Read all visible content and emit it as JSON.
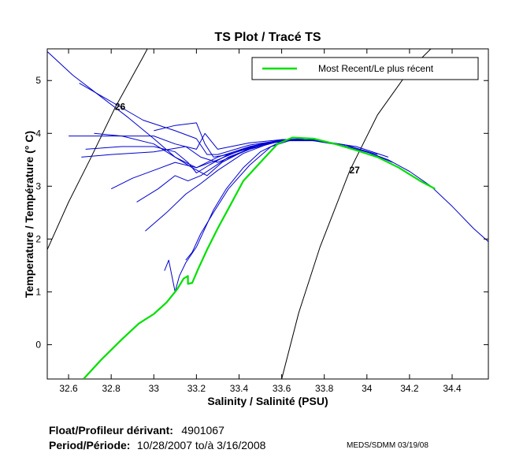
{
  "chart_data": {
    "type": "line",
    "title": "TS Plot / Tracé TS",
    "xlabel": "Salinity / Salinité (PSU)",
    "ylabel": "Temperature / Température (° C)",
    "xlim": [
      32.5,
      34.57
    ],
    "ylim": [
      -0.65,
      5.6
    ],
    "xticks": [
      32.6,
      32.8,
      33,
      33.2,
      33.4,
      33.6,
      33.8,
      34,
      34.2,
      34.4
    ],
    "xtick_labels": [
      "32.6",
      "32.8",
      "33",
      "33.2",
      "33.4",
      "33.6",
      "33.8",
      "34",
      "34.2",
      "34.4"
    ],
    "yticks": [
      0,
      1,
      2,
      3,
      4,
      5
    ],
    "ytick_labels": [
      "0",
      "1",
      "2",
      "3",
      "4",
      "5"
    ],
    "legend": {
      "position": "top-right",
      "entries": [
        {
          "label": "Most Recent/Le plus récent",
          "color": "#00e000"
        }
      ]
    },
    "density_contours": [
      {
        "label": "26",
        "label_at": [
          32.82,
          4.5
        ],
        "points": [
          [
            32.5,
            1.8
          ],
          [
            32.6,
            2.7
          ],
          [
            32.7,
            3.5
          ],
          [
            32.82,
            4.5
          ],
          [
            32.95,
            5.45
          ],
          [
            32.97,
            5.6
          ]
        ]
      },
      {
        "label": "27",
        "label_at": [
          33.92,
          3.3
        ],
        "points": [
          [
            33.6,
            -0.65
          ],
          [
            33.68,
            0.6
          ],
          [
            33.78,
            1.85
          ],
          [
            33.92,
            3.3
          ],
          [
            34.05,
            4.35
          ],
          [
            34.2,
            5.2
          ],
          [
            34.3,
            5.6
          ]
        ]
      }
    ],
    "series": [
      {
        "name": "Most Recent/Le plus récent",
        "color": "#00e000",
        "width": 2.2,
        "points": [
          [
            32.67,
            -0.65
          ],
          [
            32.75,
            -0.3
          ],
          [
            32.85,
            0.1
          ],
          [
            32.93,
            0.4
          ],
          [
            33.0,
            0.58
          ],
          [
            33.06,
            0.8
          ],
          [
            33.11,
            1.05
          ],
          [
            33.14,
            1.25
          ],
          [
            33.16,
            1.3
          ],
          [
            33.16,
            1.15
          ],
          [
            33.18,
            1.17
          ],
          [
            33.21,
            1.45
          ],
          [
            33.25,
            1.8
          ],
          [
            33.3,
            2.2
          ],
          [
            33.36,
            2.65
          ],
          [
            33.42,
            3.1
          ],
          [
            33.5,
            3.45
          ],
          [
            33.58,
            3.8
          ],
          [
            33.65,
            3.92
          ],
          [
            33.75,
            3.9
          ],
          [
            33.85,
            3.8
          ],
          [
            33.95,
            3.68
          ],
          [
            34.05,
            3.55
          ],
          [
            34.15,
            3.35
          ],
          [
            34.25,
            3.1
          ],
          [
            34.32,
            2.95
          ]
        ]
      },
      {
        "name": "profile",
        "color": "#0000d0",
        "width": 1,
        "points": [
          [
            33.58,
            3.86
          ],
          [
            33.68,
            3.89
          ],
          [
            33.8,
            3.84
          ],
          [
            33.92,
            3.74
          ],
          [
            34.02,
            3.62
          ],
          [
            34.1,
            3.5
          ],
          [
            34.2,
            3.28
          ],
          [
            34.3,
            3.0
          ],
          [
            34.4,
            2.62
          ],
          [
            34.5,
            2.2
          ],
          [
            34.57,
            1.95
          ]
        ]
      },
      {
        "name": "profile",
        "color": "#0000d0",
        "width": 1,
        "points": [
          [
            32.5,
            5.55
          ],
          [
            32.62,
            5.1
          ],
          [
            32.75,
            4.7
          ],
          [
            32.88,
            4.3
          ],
          [
            33.0,
            3.9
          ],
          [
            33.1,
            3.55
          ],
          [
            33.2,
            3.35
          ],
          [
            33.3,
            3.55
          ],
          [
            33.45,
            3.75
          ],
          [
            33.6,
            3.88
          ],
          [
            33.72,
            3.9
          ],
          [
            33.85,
            3.8
          ],
          [
            34.0,
            3.65
          ],
          [
            34.12,
            3.45
          ]
        ]
      },
      {
        "name": "profile",
        "color": "#0000d0",
        "width": 1,
        "points": [
          [
            32.65,
            4.95
          ],
          [
            32.8,
            4.6
          ],
          [
            32.95,
            4.25
          ],
          [
            33.1,
            4.05
          ],
          [
            33.2,
            3.9
          ],
          [
            33.25,
            3.6
          ],
          [
            33.3,
            3.6
          ],
          [
            33.45,
            3.78
          ],
          [
            33.6,
            3.87
          ],
          [
            33.75,
            3.88
          ],
          [
            33.9,
            3.78
          ],
          [
            34.05,
            3.6
          ]
        ]
      },
      {
        "name": "profile",
        "color": "#0000d0",
        "width": 1,
        "points": [
          [
            32.6,
            3.95
          ],
          [
            32.8,
            3.95
          ],
          [
            33.0,
            3.95
          ],
          [
            33.1,
            3.8
          ],
          [
            33.2,
            3.7
          ],
          [
            33.24,
            4.0
          ],
          [
            33.3,
            3.7
          ],
          [
            33.45,
            3.82
          ],
          [
            33.6,
            3.88
          ],
          [
            33.75,
            3.87
          ],
          [
            33.95,
            3.75
          ],
          [
            34.1,
            3.55
          ]
        ]
      },
      {
        "name": "profile",
        "color": "#0000d0",
        "width": 1,
        "points": [
          [
            32.66,
            3.55
          ],
          [
            32.8,
            3.6
          ],
          [
            33.0,
            3.65
          ],
          [
            33.15,
            3.75
          ],
          [
            33.22,
            3.55
          ],
          [
            33.3,
            3.45
          ],
          [
            33.45,
            3.7
          ],
          [
            33.6,
            3.86
          ],
          [
            33.75,
            3.86
          ],
          [
            33.9,
            3.76
          ]
        ]
      },
      {
        "name": "profile",
        "color": "#0000d0",
        "width": 1,
        "points": [
          [
            32.68,
            3.7
          ],
          [
            32.85,
            3.75
          ],
          [
            33.0,
            3.75
          ],
          [
            33.1,
            3.65
          ],
          [
            33.16,
            3.45
          ],
          [
            33.2,
            3.25
          ],
          [
            33.26,
            3.4
          ],
          [
            33.35,
            3.6
          ],
          [
            33.5,
            3.8
          ],
          [
            33.65,
            3.88
          ],
          [
            33.8,
            3.85
          ]
        ]
      },
      {
        "name": "profile",
        "color": "#0000d0",
        "width": 1,
        "points": [
          [
            32.72,
            4.0
          ],
          [
            32.85,
            3.95
          ],
          [
            33.0,
            3.8
          ],
          [
            33.1,
            3.55
          ],
          [
            33.18,
            3.35
          ],
          [
            33.25,
            3.2
          ],
          [
            33.32,
            3.45
          ],
          [
            33.45,
            3.72
          ],
          [
            33.6,
            3.87
          ],
          [
            33.75,
            3.88
          ]
        ]
      },
      {
        "name": "profile",
        "color": "#0000d0",
        "width": 1,
        "points": [
          [
            33.0,
            4.05
          ],
          [
            33.1,
            4.15
          ],
          [
            33.2,
            4.2
          ],
          [
            33.24,
            3.8
          ],
          [
            33.28,
            3.55
          ],
          [
            33.35,
            3.6
          ],
          [
            33.5,
            3.78
          ],
          [
            33.62,
            3.88
          ],
          [
            33.78,
            3.87
          ]
        ]
      },
      {
        "name": "profile",
        "color": "#0000d0",
        "width": 1,
        "points": [
          [
            32.8,
            2.95
          ],
          [
            32.9,
            3.15
          ],
          [
            33.0,
            3.3
          ],
          [
            33.1,
            3.45
          ],
          [
            33.2,
            3.35
          ],
          [
            33.3,
            3.5
          ],
          [
            33.45,
            3.75
          ],
          [
            33.6,
            3.87
          ],
          [
            33.7,
            3.88
          ]
        ]
      },
      {
        "name": "profile",
        "color": "#0000d0",
        "width": 1,
        "points": [
          [
            32.92,
            2.7
          ],
          [
            33.02,
            2.95
          ],
          [
            33.1,
            3.2
          ],
          [
            33.16,
            3.1
          ],
          [
            33.22,
            3.2
          ],
          [
            33.35,
            3.55
          ],
          [
            33.5,
            3.78
          ],
          [
            33.65,
            3.88
          ]
        ]
      },
      {
        "name": "profile",
        "color": "#0000d0",
        "width": 1,
        "points": [
          [
            32.96,
            2.15
          ],
          [
            33.06,
            2.5
          ],
          [
            33.15,
            2.85
          ],
          [
            33.22,
            3.05
          ],
          [
            33.3,
            3.3
          ],
          [
            33.42,
            3.62
          ],
          [
            33.55,
            3.82
          ],
          [
            33.68,
            3.88
          ]
        ]
      },
      {
        "name": "profile",
        "color": "#0000d0",
        "width": 1,
        "points": [
          [
            33.05,
            1.4
          ],
          [
            33.07,
            1.6
          ],
          [
            33.09,
            1.2
          ],
          [
            33.1,
            1.0
          ],
          [
            33.12,
            1.3
          ],
          [
            33.15,
            1.55
          ],
          [
            33.2,
            1.85
          ],
          [
            33.24,
            2.2
          ],
          [
            33.28,
            2.55
          ],
          [
            33.34,
            2.95
          ],
          [
            33.42,
            3.35
          ],
          [
            33.5,
            3.65
          ],
          [
            33.6,
            3.85
          ],
          [
            33.7,
            3.88
          ]
        ]
      },
      {
        "name": "profile",
        "color": "#0000d0",
        "width": 1,
        "points": [
          [
            33.15,
            1.6
          ],
          [
            33.18,
            1.75
          ],
          [
            33.22,
            2.1
          ],
          [
            33.28,
            2.5
          ],
          [
            33.35,
            2.95
          ],
          [
            33.45,
            3.4
          ],
          [
            33.55,
            3.75
          ],
          [
            33.65,
            3.88
          ]
        ]
      }
    ]
  },
  "footer": {
    "float_label": "Float/Profileur dérivant:",
    "float_id": "4901067",
    "period_label": "Period/Période:",
    "period_value": "10/28/2007  to/à  3/16/2008",
    "credit": "MEDS/SDMM  03/19/08"
  }
}
